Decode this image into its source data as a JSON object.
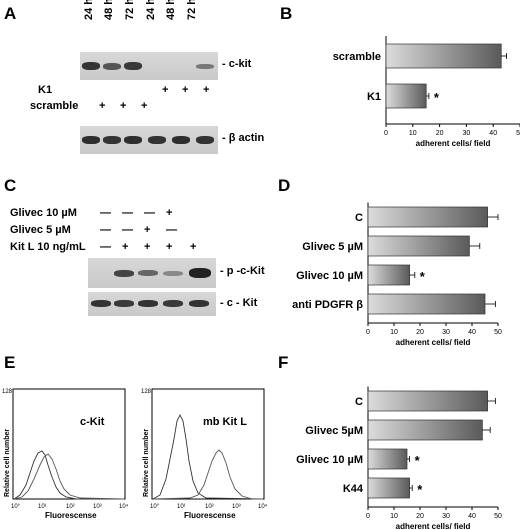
{
  "panels": {
    "A": {
      "label": "A",
      "lanes": [
        "24 h",
        "48 h",
        "72 h",
        "24 h",
        "48 h",
        "72 h"
      ],
      "rows": [
        {
          "name": "K1",
          "marks": [
            "",
            "",
            "",
            "+",
            "+",
            "+"
          ]
        },
        {
          "name": "scramble",
          "marks": [
            "+",
            "+",
            "+",
            "",
            "",
            ""
          ]
        }
      ],
      "band_labels": [
        "- c-kit",
        "- β actin"
      ]
    },
    "B": {
      "label": "B"
    },
    "C": {
      "label": "C",
      "rows": [
        {
          "name": "Glivec 10 µM",
          "marks": [
            "—",
            "—",
            "—",
            "+",
            ""
          ]
        },
        {
          "name": "Glivec  5 µM",
          "marks": [
            "—",
            "—",
            "+",
            "—",
            ""
          ]
        },
        {
          "name": "Kit L 10 ng/mL",
          "marks": [
            "—",
            "+",
            "+",
            "+",
            "+"
          ]
        }
      ],
      "band_labels": [
        "- p -c-Kit",
        "- c - Kit"
      ]
    },
    "D": {
      "label": "D"
    },
    "E": {
      "label": "E",
      "histograms": [
        {
          "title": "c-Kit",
          "ylabel": "Relative cell number",
          "xlabel": "Fluorescense",
          "ymax_label": "128",
          "xticks": [
            "10°",
            "10¹",
            "10²",
            "10³",
            "10⁴"
          ]
        },
        {
          "title": "mb Kit L",
          "ylabel": "Relative cell number",
          "xlabel": "Fluorescense",
          "ymax_label": "128",
          "xticks": [
            "10°",
            "10¹",
            "10²",
            "10³",
            "10⁴"
          ]
        }
      ]
    },
    "F": {
      "label": "F"
    }
  },
  "chart_data": [
    {
      "id": "B",
      "type": "bar",
      "orientation": "horizontal",
      "categories": [
        "scramble",
        "K1"
      ],
      "values": [
        43,
        15
      ],
      "errors": [
        2,
        1
      ],
      "significant": [
        false,
        true
      ],
      "xlabel": "adherent cells/ field",
      "xlim": [
        0,
        50
      ],
      "xticks": [
        "0",
        "10",
        "20",
        "30",
        "40",
        "50"
      ]
    },
    {
      "id": "D",
      "type": "bar",
      "orientation": "horizontal",
      "categories": [
        "C",
        "Glivec 5 µM",
        "Glivec 10 µM",
        "anti PDGFR β"
      ],
      "values": [
        46,
        39,
        16,
        45
      ],
      "errors": [
        4,
        4,
        2,
        4
      ],
      "significant": [
        false,
        false,
        true,
        false
      ],
      "xlabel": "adherent cells/ field",
      "xlim": [
        0,
        50
      ],
      "xticks": [
        "0",
        "10",
        "20",
        "30",
        "40",
        "50"
      ]
    },
    {
      "id": "F",
      "type": "bar",
      "orientation": "horizontal",
      "categories": [
        "C",
        "Glivec  5µM",
        "Glivec 10 µM",
        "K44"
      ],
      "values": [
        46,
        44,
        15,
        16
      ],
      "errors": [
        3,
        3,
        1,
        1
      ],
      "significant": [
        false,
        false,
        true,
        true
      ],
      "xlabel": "adherent cells/ field",
      "xlim": [
        0,
        50
      ],
      "xticks": [
        "0",
        "10",
        "20",
        "30",
        "40",
        "50"
      ]
    }
  ]
}
